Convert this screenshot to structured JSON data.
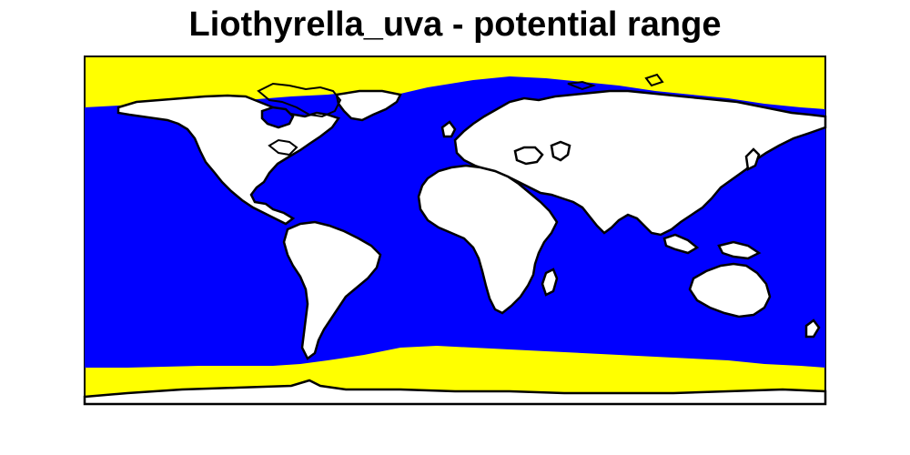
{
  "title": "Liothyrella_uva - potential range",
  "legend_colors": {
    "ocean_range": "#0000ff",
    "polar_band": "#ffff00",
    "land": "#ffffff",
    "outline": "#000000"
  },
  "icons": [
    "world-map-icon"
  ]
}
